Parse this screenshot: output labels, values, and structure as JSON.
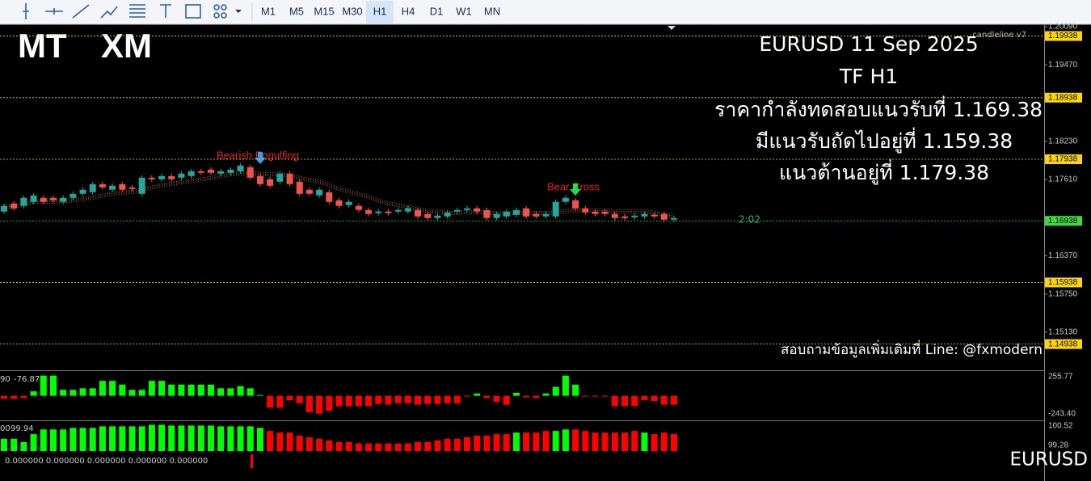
{
  "toolbar": {
    "timeframes": [
      "M1",
      "M5",
      "M15",
      "M30",
      "H1",
      "H4",
      "D1",
      "W1",
      "MN"
    ],
    "active": "H1"
  },
  "logo": {
    "left": "MT",
    "right": "XM"
  },
  "indicator_name": "candleline v7",
  "overlay": {
    "line1": "EURUSD  11 Sep  2025",
    "line2": "TF H1",
    "line3": "ราคากำลังทดสอบแนวรับที่  1.169.38",
    "line4": "มีแนวรับถัดไปอยู่ที่   1.159.38",
    "line5": "แนวต้านอยู่ที่    1.179.38",
    "contact": "สอบถามข้อมูลเพิ่มเติมที่ Line: @fxmodern"
  },
  "symbol": "EURUSD",
  "annotations": {
    "pattern": "Bearish Engulfing",
    "cross": "Bear Cross",
    "timer": "2:02"
  },
  "price_axis": {
    "ticks": [
      {
        "value": 1.2009,
        "label": "1.20090"
      },
      {
        "value": 1.1947,
        "label": "1.19470"
      },
      {
        "value": 1.1823,
        "label": "1.18230"
      },
      {
        "value": 1.1761,
        "label": "1.17610"
      },
      {
        "value": 1.1637,
        "label": "1.16370"
      },
      {
        "value": 1.1575,
        "label": "1.15750"
      },
      {
        "value": 1.1513,
        "label": "1.15130"
      }
    ],
    "levels": [
      {
        "value": 1.19938,
        "color": "#ffd700"
      },
      {
        "value": 1.18938,
        "color": "#ffd700"
      },
      {
        "value": 1.17938,
        "color": "#ffd700"
      },
      {
        "value": 1.16938,
        "color": "#3cdc3c"
      },
      {
        "value": 1.15938,
        "color": "#ffd700"
      },
      {
        "value": 1.14938,
        "color": "#ffd700"
      }
    ]
  },
  "candles": {
    "up_color": "#26a69a",
    "down_color": "#ef5350",
    "open": [
      1.17089,
      1.1722,
      1.17181,
      1.17246,
      1.17312,
      1.17312,
      1.17246,
      1.17312,
      1.17377,
      1.17403,
      1.17534,
      1.17443,
      1.17534,
      1.17482,
      1.17377,
      1.17639,
      1.17613,
      1.17665,
      1.17639,
      1.17665,
      1.17744,
      1.1777,
      1.17705,
      1.17718,
      1.17744,
      1.17809,
      1.17665,
      1.17613,
      1.17574,
      1.17705,
      1.17574,
      1.17443,
      1.17351,
      1.17403,
      1.17272,
      1.17194,
      1.17181,
      1.17115,
      1.17063,
      1.17089,
      1.17089,
      1.17089,
      1.17115,
      1.1705,
      1.16984,
      1.1701,
      1.17089,
      1.17115,
      1.17141,
      1.17115,
      1.16984,
      1.1701,
      1.17036,
      1.17141,
      1.1705,
      1.1701,
      1.1701,
      1.17246,
      1.17272,
      1.17141,
      1.17089,
      1.17089,
      1.1705,
      1.1701,
      1.16997,
      1.1701,
      1.17036,
      1.1705,
      1.16958
    ],
    "close": [
      1.17181,
      1.17141,
      1.17312,
      1.17351,
      1.17246,
      1.17272,
      1.17312,
      1.17377,
      1.17443,
      1.17534,
      1.17482,
      1.17508,
      1.17443,
      1.17456,
      1.17639,
      1.17613,
      1.17665,
      1.17613,
      1.17705,
      1.17744,
      1.17718,
      1.17718,
      1.17744,
      1.1777,
      1.17836,
      1.17639,
      1.17534,
      1.17508,
      1.17705,
      1.17534,
      1.17377,
      1.17377,
      1.17443,
      1.17246,
      1.17181,
      1.17246,
      1.17115,
      1.1705,
      1.17089,
      1.17063,
      1.17115,
      1.17141,
      1.1701,
      1.16984,
      1.17023,
      1.17076,
      1.17115,
      1.17141,
      1.17089,
      1.16984,
      1.1705,
      1.17089,
      1.17115,
      1.1701,
      1.1701,
      1.1705,
      1.17246,
      1.17312,
      1.17141,
      1.17076,
      1.1705,
      1.1705,
      1.16984,
      1.16984,
      1.17023,
      1.1705,
      1.1701,
      1.16958,
      1.16984
    ]
  },
  "osc1": {
    "label_prefix": "90",
    "label": "-76.87",
    "ticks": [
      255.77,
      {
        "value": -243.4,
        "label": "-243.40"
      }
    ],
    "up_color": "#00ff00",
    "down_color": "#ff0000",
    "values": [
      -40,
      -40,
      -30,
      60,
      270,
      270,
      80,
      80,
      100,
      100,
      200,
      200,
      150,
      80,
      80,
      200,
      200,
      150,
      150,
      150,
      150,
      150,
      100,
      100,
      130,
      100,
      10,
      -160,
      -160,
      -60,
      -100,
      -220,
      -240,
      -200,
      -140,
      -140,
      -140,
      -140,
      -110,
      -120,
      -100,
      -100,
      -120,
      -110,
      -110,
      -100,
      -100,
      -10,
      30,
      -30,
      -80,
      -120,
      40,
      -20,
      -30,
      30,
      120,
      270,
      150,
      -10,
      -10,
      -10,
      -140,
      -140,
      -140,
      -60,
      -70,
      -120,
      -120
    ]
  },
  "osc2": {
    "label_prefix": "00",
    "label": "99.94",
    "ticks": [
      100.52,
      99.28
    ],
    "colors": [
      "#00ff00",
      "#ff0000"
    ],
    "values": [
      99.7,
      99.7,
      99.5,
      100.0,
      100.3,
      100.3,
      100.3,
      100.4,
      100.4,
      100.4,
      100.5,
      100.5,
      100.5,
      100.5,
      100.5,
      100.6,
      100.6,
      100.55,
      100.55,
      100.55,
      100.55,
      100.55,
      100.5,
      100.5,
      100.5,
      100.5,
      100.4,
      100.2,
      100.1,
      100.1,
      99.9,
      99.8,
      99.7,
      99.6,
      99.5,
      99.5,
      99.4,
      99.4,
      99.4,
      99.4,
      99.4,
      99.4,
      99.5,
      99.5,
      99.6,
      99.7,
      99.7,
      99.8,
      99.9,
      99.9,
      100.0,
      100.0,
      100.1,
      100.1,
      100.1,
      100.2,
      100.2,
      100.3,
      100.3,
      100.2,
      100.1,
      100.1,
      100.1,
      100.1,
      100.2,
      100.1,
      100.0,
      100.1,
      100.0
    ],
    "color_index": [
      0,
      0,
      0,
      0,
      0,
      0,
      0,
      0,
      0,
      0,
      0,
      0,
      0,
      0,
      0,
      0,
      0,
      0,
      0,
      0,
      0,
      0,
      0,
      0,
      0,
      0,
      0,
      1,
      1,
      1,
      1,
      1,
      1,
      1,
      1,
      1,
      1,
      1,
      1,
      1,
      1,
      1,
      1,
      1,
      1,
      1,
      1,
      1,
      1,
      1,
      1,
      1,
      0,
      1,
      1,
      1,
      0,
      0,
      1,
      1,
      1,
      1,
      1,
      1,
      1,
      0,
      1,
      1,
      1
    ]
  },
  "osc3": {
    "label": "0.000000 0.000000 0.000000 0.000000 0.000000"
  }
}
